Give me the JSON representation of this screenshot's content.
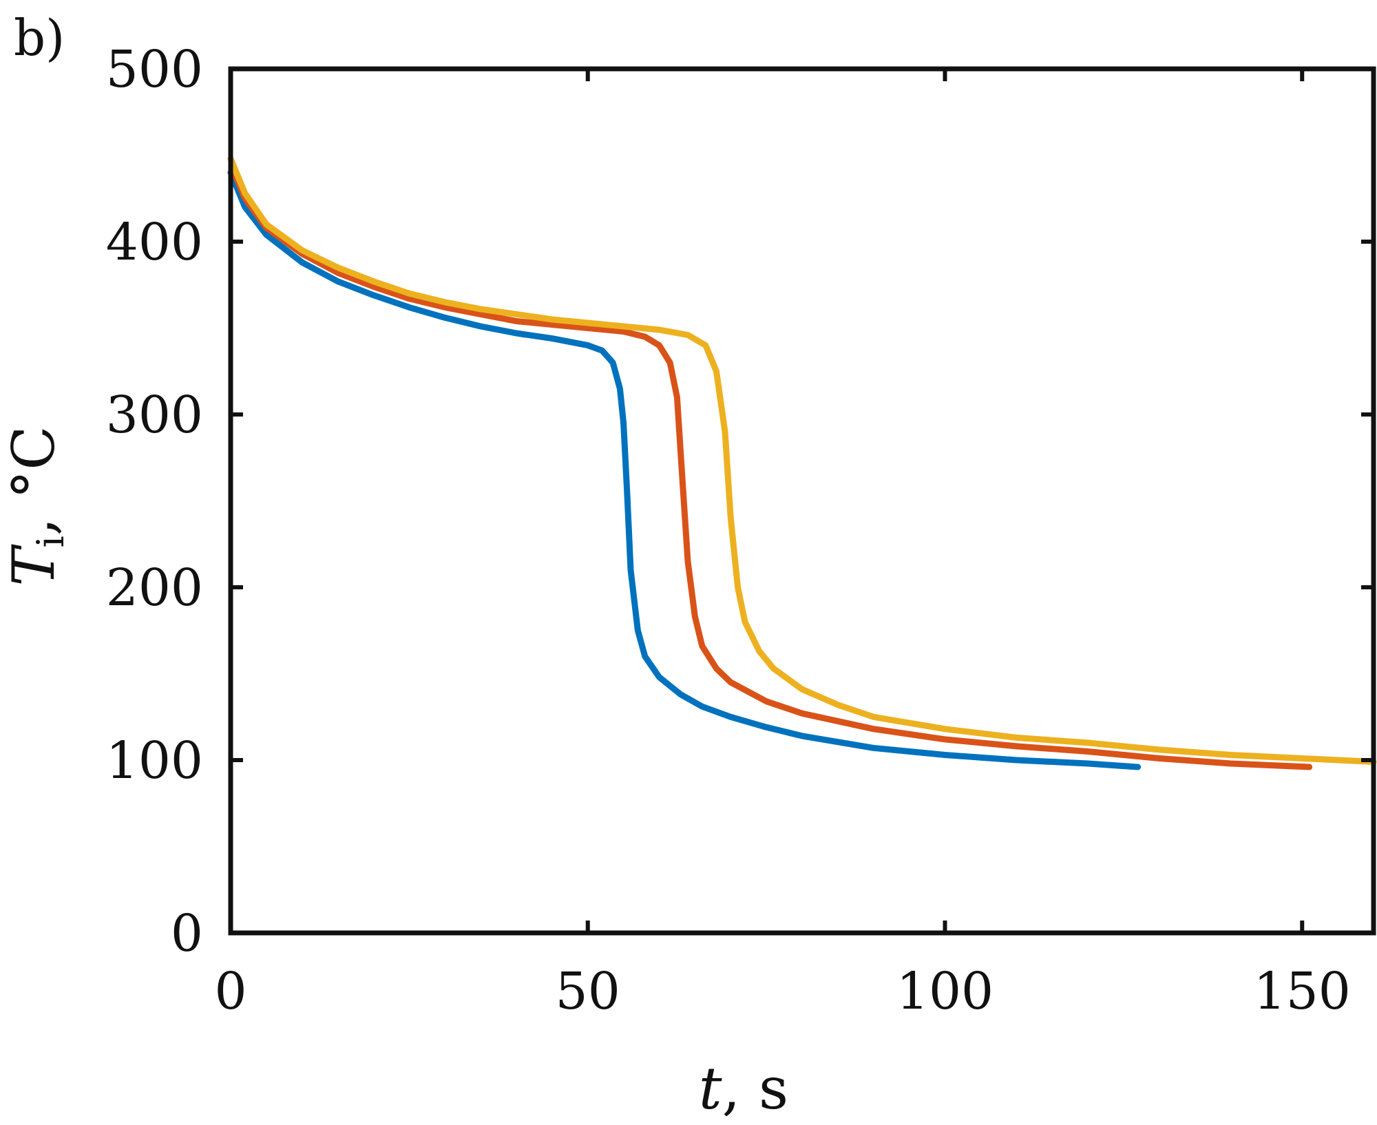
{
  "panel_label": "b)",
  "chart_data": {
    "type": "line",
    "title": "",
    "xlabel": {
      "var": "t",
      "unit": ", s"
    },
    "ylabel": {
      "var": "T",
      "sub": "i",
      "unit": ", °C"
    },
    "xlim": [
      0,
      160
    ],
    "ylim": [
      0,
      500
    ],
    "xticks": [
      0,
      50,
      100,
      150
    ],
    "yticks": [
      0,
      100,
      200,
      300,
      400,
      500
    ],
    "xtick_labels": [
      "0",
      "50",
      "100",
      "150"
    ],
    "ytick_labels": [
      "0",
      "100",
      "200",
      "300",
      "400",
      "500"
    ],
    "grid": false,
    "series": [
      {
        "color": "#0072BD",
        "x": [
          0,
          2,
          5,
          10,
          15,
          20,
          25,
          30,
          35,
          40,
          45,
          50,
          52,
          53.5,
          54.5,
          55,
          55.5,
          56,
          57,
          58,
          60,
          63,
          66,
          70,
          75,
          80,
          90,
          100,
          110,
          120,
          127
        ],
        "y": [
          440,
          420,
          404,
          388,
          377,
          369,
          362,
          356,
          351,
          347,
          344,
          340,
          337,
          330,
          315,
          295,
          255,
          210,
          175,
          160,
          148,
          138,
          131,
          125,
          119,
          114,
          107,
          103,
          100,
          98,
          96
        ]
      },
      {
        "color": "#D95319",
        "x": [
          0.5,
          2,
          5,
          10,
          15,
          20,
          25,
          30,
          35,
          40,
          45,
          50,
          55,
          58,
          60,
          61.5,
          62.5,
          63.2,
          64,
          65,
          66,
          68,
          70,
          75,
          80,
          90,
          100,
          110,
          120,
          130,
          140,
          151
        ],
        "y": [
          440,
          425,
          408,
          393,
          382,
          374,
          367,
          362,
          358,
          354,
          352,
          350,
          348,
          345,
          340,
          330,
          310,
          265,
          215,
          183,
          166,
          153,
          145,
          134,
          127,
          118,
          112,
          108,
          105,
          101,
          98,
          96
        ]
      },
      {
        "color": "#EDB120",
        "x": [
          0,
          2,
          5,
          10,
          15,
          20,
          25,
          30,
          35,
          40,
          45,
          50,
          55,
          60,
          64,
          66.5,
          68,
          69.2,
          70,
          71,
          72,
          74,
          76,
          80,
          85,
          90,
          100,
          110,
          120,
          130,
          140,
          150,
          160
        ],
        "y": [
          448,
          428,
          410,
          395,
          385,
          377,
          370,
          365,
          361,
          358,
          355,
          353,
          351,
          349,
          346,
          340,
          325,
          290,
          240,
          200,
          180,
          163,
          153,
          141,
          132,
          125,
          118,
          113,
          110,
          106,
          103,
          101,
          99
        ]
      }
    ]
  }
}
